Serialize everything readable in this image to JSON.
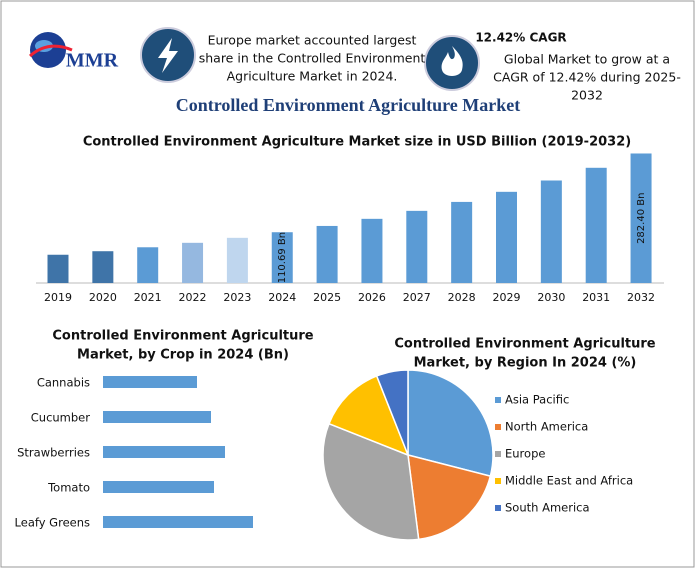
{
  "header": {
    "logo": "MMR",
    "note_lines": [
      "Europe market accounted largest",
      "share in the Controlled Environment",
      "Agriculture Market in 2024."
    ],
    "cagr_title": "12.42% CAGR",
    "cagr_lines": [
      "Global Market to grow at a",
      "CAGR of 12.42% during 2025-",
      "2032"
    ],
    "title": "Controlled Environment Agriculture Market"
  },
  "chart_data": [
    {
      "type": "bar",
      "title": [
        "Controlled Environment Agriculture Market size in USD Billion (2019-2032)"
      ],
      "categories": [
        "2019",
        "2020",
        "2021",
        "2022",
        "2023",
        "2024",
        "2025",
        "2026",
        "2027",
        "2028",
        "2029",
        "2030",
        "2031",
        "2032"
      ],
      "values": [
        61.6,
        69.3,
        77.9,
        87.6,
        98.5,
        110.69,
        124.4,
        139.9,
        157.3,
        176.8,
        198.8,
        223.5,
        251.2,
        282.4
      ],
      "value_labels": [
        null,
        null,
        null,
        null,
        null,
        "110.69 Bn",
        null,
        null,
        null,
        null,
        null,
        null,
        null,
        "282.40 Bn"
      ],
      "colors": [
        "#3f74a8",
        "#3f74a8",
        "#5b9bd5",
        "#95b8e0",
        "#bfd6ee",
        "#5b9bd5",
        "#5b9bd5",
        "#5b9bd5",
        "#5b9bd5",
        "#5b9bd5",
        "#5b9bd5",
        "#5b9bd5",
        "#5b9bd5",
        "#5b9bd5"
      ],
      "ylim": [
        0,
        290
      ]
    },
    {
      "type": "hbar",
      "title": [
        "Controlled Environment Agriculture",
        "Market, by Crop in 2024 (Bn)"
      ],
      "categories": [
        "Cannabis",
        "Cucumber",
        "Strawberries",
        "Tomato",
        "Leafy Greens"
      ],
      "values": [
        9.4,
        10.8,
        12.2,
        11.1,
        15.0
      ],
      "color": "#5b9bd5",
      "xlim": [
        0,
        16
      ]
    },
    {
      "type": "pie",
      "title": [
        "Controlled Environment Agriculture",
        "Market, by Region In 2024 (%)"
      ],
      "categories": [
        "Asia Pacific",
        "North America",
        "Europe",
        "Middle East and Africa",
        "South America"
      ],
      "values": [
        29,
        19,
        33,
        13,
        6
      ],
      "colors": [
        "#5b9bd5",
        "#ed7d31",
        "#a5a5a5",
        "#ffc000",
        "#4472c4"
      ]
    }
  ]
}
